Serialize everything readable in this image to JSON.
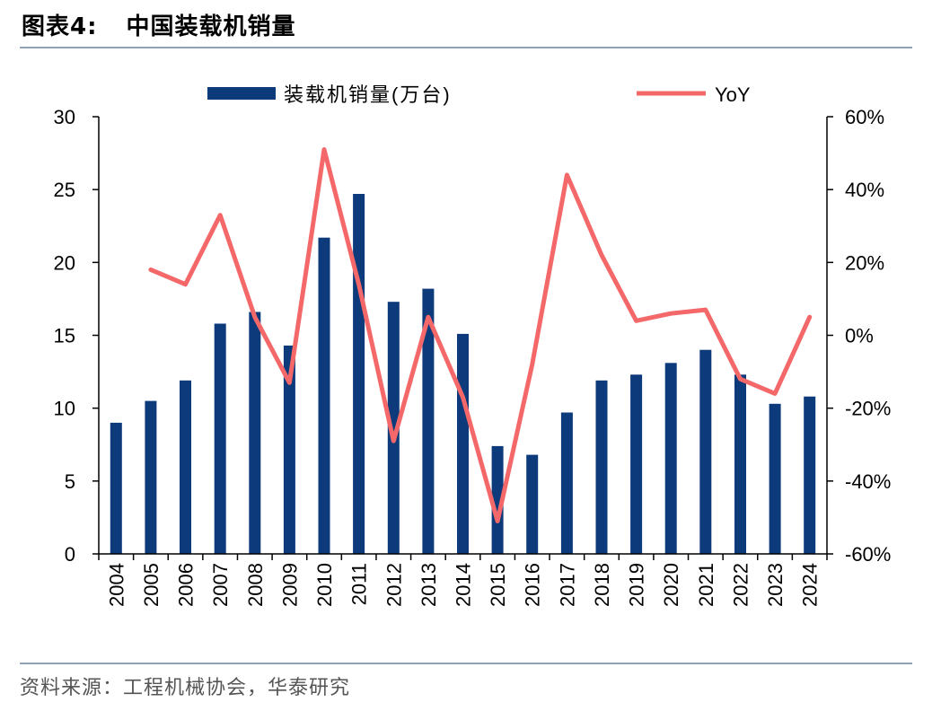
{
  "figure": {
    "label": "图表4:",
    "title": "中国装载机销量",
    "source": "资料来源：工程机械协会，华泰研究"
  },
  "colors": {
    "bar": "#0D3A7A",
    "line": "#F4686A",
    "axis": "#000000",
    "rule": "#8EA3B8"
  },
  "chart_data": {
    "type": "bar+line",
    "categories": [
      "2004",
      "2005",
      "2006",
      "2007",
      "2008",
      "2009",
      "2010",
      "2011",
      "2012",
      "2013",
      "2014",
      "2015",
      "2016",
      "2017",
      "2018",
      "2019",
      "2020",
      "2021",
      "2022",
      "2023",
      "2024"
    ],
    "series": [
      {
        "name": "装载机销量(万台)",
        "type": "bar",
        "axis": "left",
        "values": [
          9.0,
          10.5,
          11.9,
          15.8,
          16.6,
          14.3,
          21.7,
          24.7,
          17.3,
          18.2,
          15.1,
          7.4,
          6.8,
          9.7,
          11.9,
          12.3,
          13.1,
          14.0,
          12.3,
          10.3,
          10.8
        ]
      },
      {
        "name": "YoY",
        "type": "line",
        "axis": "right",
        "values": [
          null,
          0.18,
          0.14,
          0.33,
          0.05,
          -0.13,
          0.51,
          0.14,
          -0.29,
          0.05,
          -0.17,
          -0.51,
          -0.08,
          0.44,
          0.22,
          0.04,
          0.06,
          0.07,
          -0.12,
          -0.16,
          0.05
        ]
      }
    ],
    "y_left": {
      "min": 0,
      "max": 30,
      "ticks": [
        0,
        5,
        10,
        15,
        20,
        25,
        30
      ],
      "tick_labels": [
        "0",
        "5",
        "10",
        "15",
        "20",
        "25",
        "30"
      ]
    },
    "y_right": {
      "min": -0.6,
      "max": 0.6,
      "ticks": [
        -0.6,
        -0.4,
        -0.2,
        0,
        0.2,
        0.4,
        0.6
      ],
      "tick_labels": [
        "-60%",
        "-40%",
        "-20%",
        "0%",
        "20%",
        "40%",
        "60%"
      ]
    },
    "grid": false,
    "legend": "top"
  }
}
